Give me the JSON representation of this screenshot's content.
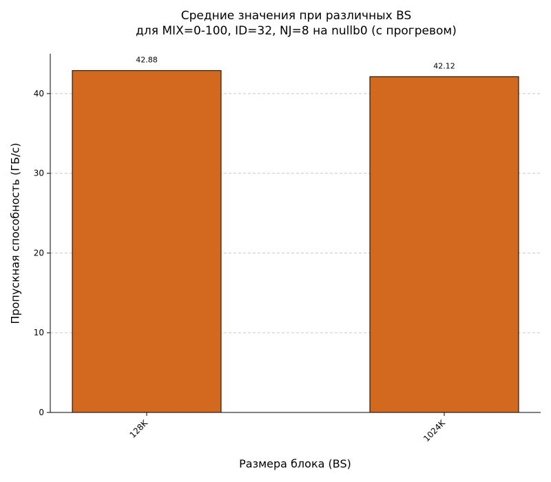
{
  "chart_data": {
    "type": "bar",
    "title_lines": [
      "Средние значения при различных BS",
      "для MIX=0-100, ID=32, NJ=8 на nullb0 (с прогревом)"
    ],
    "xlabel": "Размера блока (BS)",
    "ylabel": "Пропускная способность (ГБ/с)",
    "categories": [
      "128K",
      "1024K"
    ],
    "values": [
      42.88,
      42.12
    ],
    "value_labels": [
      "42.88",
      "42.12"
    ],
    "ylim": [
      0,
      45
    ],
    "yticks": [
      0,
      10,
      20,
      30,
      40
    ],
    "ytick_labels": [
      "0",
      "10",
      "20",
      "30",
      "40"
    ],
    "grid": "y-dashed",
    "bar_color": "#d2691e",
    "bar_edge_color": "#000000",
    "grid_color": "#c8c8c8"
  }
}
